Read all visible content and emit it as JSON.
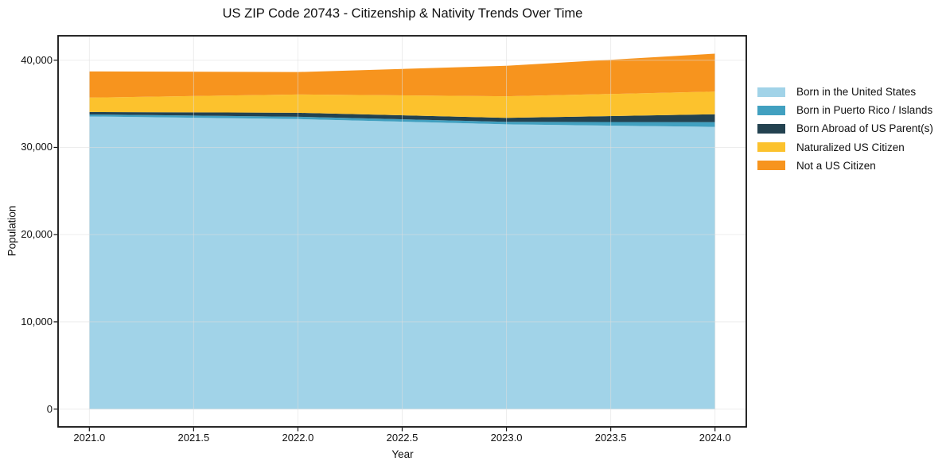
{
  "title": "US ZIP Code 20743 - Citizenship & Nativity Trends Over Time",
  "chart_data": {
    "type": "area",
    "stacked": true,
    "title": "US ZIP Code 20743 - Citizenship & Nativity Trends Over Time",
    "x": [
      2021,
      2022,
      2023,
      2024
    ],
    "series": [
      {
        "name": "Born in the United States",
        "color": "#A1D3E8",
        "values": [
          33550,
          33250,
          32650,
          32350
        ]
      },
      {
        "name": "Born in Puerto Rico / Islands",
        "color": "#41A0C0",
        "values": [
          230,
          270,
          280,
          550
        ]
      },
      {
        "name": "Born Abroad of US Parent(s)",
        "color": "#234250",
        "values": [
          280,
          450,
          460,
          900
        ]
      },
      {
        "name": "Naturalized US Citizen",
        "color": "#FCC22D",
        "values": [
          1650,
          2100,
          2470,
          2600
        ]
      },
      {
        "name": "Not a US Citizen",
        "color": "#F7941E",
        "values": [
          3000,
          2570,
          3500,
          4350
        ]
      }
    ],
    "xlabel": "Year",
    "ylabel": "Population",
    "xlim": [
      2020.85,
      2024.15
    ],
    "ylim": [
      -2040,
      42800
    ],
    "xticks": [
      2021.0,
      2021.5,
      2022.0,
      2022.5,
      2023.0,
      2023.5,
      2024.0
    ],
    "xtick_labels": [
      "2021.0",
      "2021.5",
      "2022.0",
      "2022.5",
      "2023.0",
      "2023.5",
      "2024.0"
    ],
    "yticks": [
      0,
      10000,
      20000,
      30000,
      40000
    ],
    "ytick_labels": [
      "0",
      "10,000",
      "20,000",
      "30,000",
      "40,000"
    ],
    "grid": true,
    "grid_color": "#DEDEDE",
    "spine_color": "#111111",
    "legend_position": "right"
  }
}
